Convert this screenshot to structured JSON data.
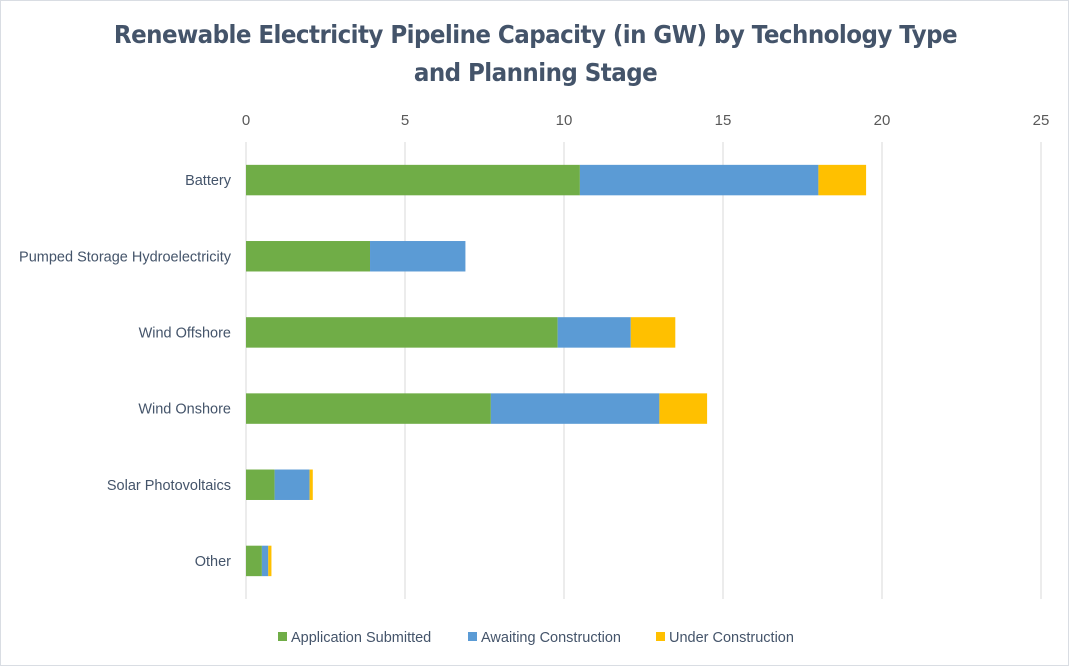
{
  "chart_data": {
    "type": "bar",
    "orientation": "horizontal",
    "stacked": true,
    "title": "Renewable Electricity Pipeline Capacity (in GW) by Technology Type and Planning Stage",
    "title_lines": [
      "Renewable Electricity Pipeline Capacity (in GW) by Technology Type",
      "and Planning Stage"
    ],
    "xlabel": "",
    "ylabel": "",
    "xlim": [
      0,
      25
    ],
    "x_ticks": [
      0,
      5,
      10,
      15,
      20,
      25
    ],
    "x_axis_position": "top",
    "grid": true,
    "legend_position": "bottom",
    "categories": [
      "Battery",
      "Pumped Storage Hydroelectricity",
      "Wind Offshore",
      "Wind Onshore",
      "Solar Photovoltaics",
      "Other"
    ],
    "series": [
      {
        "name": "Application Submitted",
        "color": "#70ad47",
        "values": [
          10.5,
          3.9,
          9.8,
          7.7,
          0.9,
          0.5
        ]
      },
      {
        "name": "Awaiting Construction",
        "color": "#5b9bd5",
        "values": [
          7.5,
          3.0,
          2.3,
          5.3,
          1.1,
          0.2
        ]
      },
      {
        "name": "Under Construction",
        "color": "#ffc000",
        "values": [
          1.5,
          0.0,
          1.4,
          1.5,
          0.1,
          0.1
        ]
      }
    ]
  }
}
